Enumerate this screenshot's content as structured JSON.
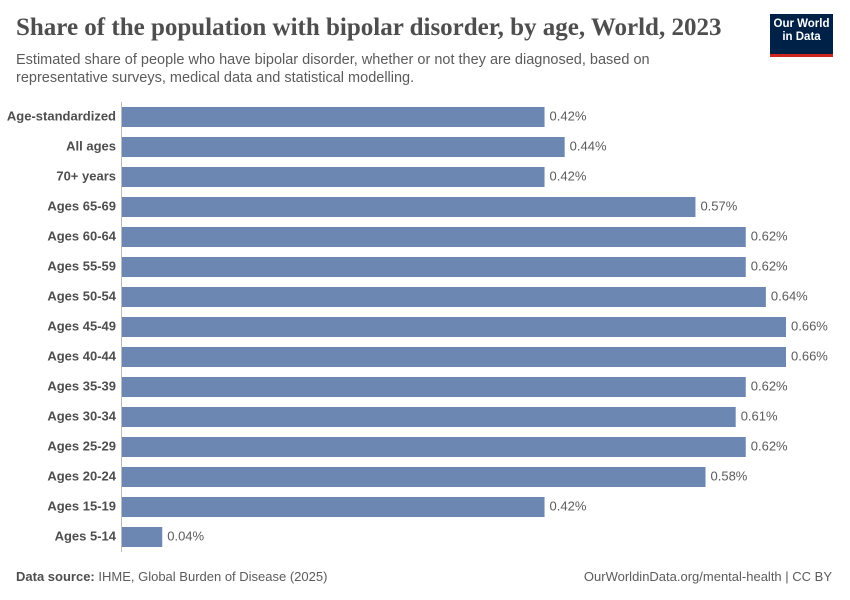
{
  "chart_data": {
    "type": "bar",
    "orientation": "horizontal",
    "title": "Share of the population with bipolar disorder, by age, World, 2023",
    "subtitle": "Estimated share of people who have bipolar disorder, whether or not they are diagnosed, based on representative surveys, medical data and statistical modelling.",
    "categories": [
      "Age-standardized",
      "All ages",
      "70+ years",
      "Ages 65-69",
      "Ages 60-64",
      "Ages 55-59",
      "Ages 50-54",
      "Ages 45-49",
      "Ages 40-44",
      "Ages 35-39",
      "Ages 30-34",
      "Ages 25-29",
      "Ages 20-24",
      "Ages 15-19",
      "Ages 5-14"
    ],
    "values": [
      0.42,
      0.44,
      0.42,
      0.57,
      0.62,
      0.62,
      0.64,
      0.66,
      0.66,
      0.62,
      0.61,
      0.62,
      0.58,
      0.42,
      0.04
    ],
    "value_labels": [
      "0.42%",
      "0.44%",
      "0.42%",
      "0.57%",
      "0.62%",
      "0.62%",
      "0.64%",
      "0.66%",
      "0.66%",
      "0.62%",
      "0.61%",
      "0.62%",
      "0.58%",
      "0.42%",
      "0.04%"
    ],
    "color": "#6d87b3",
    "logo": "Our World in Data",
    "source_label": "Data source:",
    "source": "IHME, Global Burden of Disease (2025)",
    "footer_right": "OurWorldinData.org/mental-health | CC BY"
  }
}
